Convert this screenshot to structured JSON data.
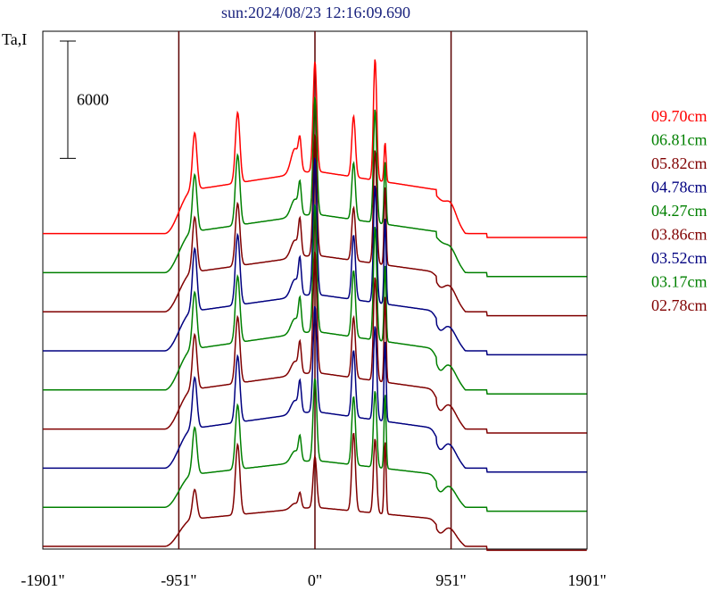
{
  "chart_data": {
    "type": "line",
    "title": "sun:2024/08/23 12:16:09.690",
    "ylabel": "Ta,I",
    "xlabel": "",
    "xlim": [
      -1901,
      1901
    ],
    "xticks": [
      {
        "value": -1901,
        "label": "-1901\""
      },
      {
        "value": -951,
        "label": "-951\""
      },
      {
        "value": 0,
        "label": "0\""
      },
      {
        "value": 951,
        "label": "951\""
      },
      {
        "value": 1901,
        "label": "1901\""
      }
    ],
    "vlines": [
      -951,
      0,
      951
    ],
    "scale_bar": {
      "value": 6000,
      "label": "6000"
    },
    "grid": false,
    "legend_position": "right",
    "peaks_x": [
      -840,
      -540,
      -140,
      -105,
      0,
      270,
      420,
      490
    ],
    "series": [
      {
        "name": "09.70cm",
        "color": "#ff0000",
        "offset": 16000,
        "edge_left": 0,
        "edge_right": -200,
        "base": 3200,
        "wing": 500,
        "right_bump": 600,
        "dip": 0,
        "peaks": [
          2900,
          3600,
          1300,
          1300,
          5600,
          3100,
          6200,
          2000
        ]
      },
      {
        "name": "06.81cm",
        "color": "#008000",
        "offset": 14000,
        "edge_left": 0,
        "edge_right": -200,
        "base": 3000,
        "wing": 500,
        "right_bump": 400,
        "dip": 0,
        "peaks": [
          2900,
          3600,
          900,
          1400,
          6000,
          2900,
          5800,
          3200
        ]
      },
      {
        "name": "05.82cm",
        "color": "#800000",
        "offset": 12000,
        "edge_left": 0,
        "edge_right": -200,
        "base": 2900,
        "wing": 500,
        "right_bump": 400,
        "dip": 300,
        "peaks": [
          2800,
          3200,
          900,
          1600,
          6200,
          2700,
          5800,
          4000
        ]
      },
      {
        "name": "04.78cm",
        "color": "#000080",
        "offset": 10000,
        "edge_left": 0,
        "edge_right": -200,
        "base": 2900,
        "wing": 500,
        "right_bump": 300,
        "dip": 500,
        "peaks": [
          3200,
          3600,
          900,
          1600,
          7000,
          3300,
          6000,
          4400
        ]
      },
      {
        "name": "04.27cm",
        "color": "#008000",
        "offset": 8000,
        "edge_left": 0,
        "edge_right": -200,
        "base": 3000,
        "wing": 500,
        "right_bump": 300,
        "dip": 600,
        "peaks": [
          2900,
          3400,
          800,
          1500,
          6500,
          3400,
          5800,
          3900
        ]
      },
      {
        "name": "03.86cm",
        "color": "#800000",
        "offset": 6000,
        "edge_left": 0,
        "edge_right": -200,
        "base": 2900,
        "wing": 500,
        "right_bump": 300,
        "dip": 600,
        "peaks": [
          2800,
          3400,
          700,
          1400,
          6200,
          3100,
          5300,
          4400
        ]
      },
      {
        "name": "03.52cm",
        "color": "#000080",
        "offset": 4000,
        "edge_left": 0,
        "edge_right": -200,
        "base": 2900,
        "wing": 500,
        "right_bump": 300,
        "dip": 600,
        "peaks": [
          2600,
          3400,
          700,
          1400,
          5400,
          3400,
          4800,
          4100
        ]
      },
      {
        "name": "03.17cm",
        "color": "#008000",
        "offset": 2000,
        "edge_left": 0,
        "edge_right": -200,
        "base": 2400,
        "wing": 400,
        "right_bump": 300,
        "dip": 500,
        "peaks": [
          2400,
          3300,
          600,
          1100,
          4200,
          3500,
          3900,
          3800
        ]
      },
      {
        "name": "02.78cm",
        "color": "#800000",
        "offset": 0,
        "edge_left": 0,
        "edge_right": -200,
        "base": 2000,
        "wing": 300,
        "right_bump": 300,
        "dip": 400,
        "peaks": [
          1500,
          3600,
          300,
          700,
          2600,
          4000,
          3800,
          3700
        ]
      }
    ]
  }
}
